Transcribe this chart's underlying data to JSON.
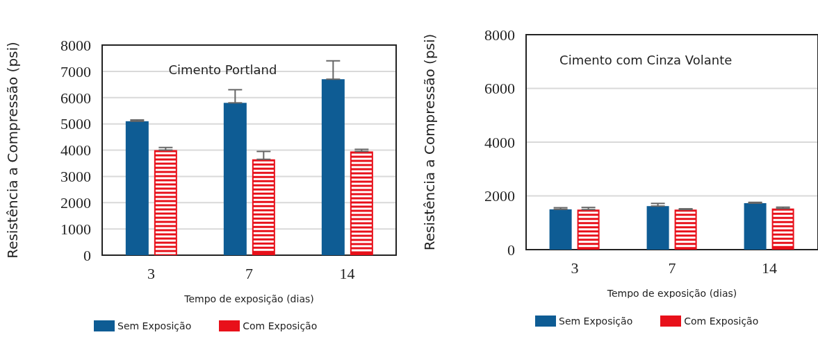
{
  "chart_data": [
    {
      "type": "bar",
      "title": "Cimento Portland",
      "xlabel": "Tempo de exposição (dias)",
      "ylabel": "Resistência a Compressão (psi)",
      "categories": [
        "3",
        "7",
        "14"
      ],
      "series": [
        {
          "name": "Sem Exposição",
          "color": "#0e5c94",
          "values": [
            5100,
            5800,
            6700
          ],
          "errors": [
            [
              5100,
              5150
            ],
            [
              5800,
              6300
            ],
            [
              6700,
              7400
            ]
          ]
        },
        {
          "name": "Com Exposição",
          "color": "#e8101a",
          "values": [
            4000,
            3650,
            3950
          ],
          "errors": [
            [
              4000,
              4100
            ],
            [
              3650,
              3950
            ],
            [
              3950,
              4030
            ]
          ]
        }
      ],
      "ylim": [
        0,
        8000
      ],
      "yticks": [
        0,
        1000,
        2000,
        3000,
        4000,
        5000,
        6000,
        7000,
        8000
      ],
      "grid": "y",
      "legend": "bottom"
    },
    {
      "type": "bar",
      "title": "Cimento com Cinza Volante",
      "xlabel": "Tempo de exposição (dias)",
      "ylabel": "Resistência a Compressão (psi)",
      "categories": [
        "3",
        "7",
        "14"
      ],
      "series": [
        {
          "name": "Sem Exposição",
          "color": "#0e5c94",
          "values": [
            1500,
            1620,
            1730
          ],
          "errors": [
            [
              1500,
              1560
            ],
            [
              1620,
              1720
            ],
            [
              1730,
              1760
            ]
          ]
        },
        {
          "name": "Com Exposição",
          "color": "#e8101a",
          "values": [
            1490,
            1490,
            1530
          ],
          "errors": [
            [
              1490,
              1570
            ],
            [
              1490,
              1520
            ],
            [
              1530,
              1580
            ]
          ]
        }
      ],
      "ylim": [
        0,
        8000
      ],
      "yticks": [
        0,
        2000,
        4000,
        6000,
        8000
      ],
      "grid": "y",
      "legend": "bottom"
    }
  ]
}
